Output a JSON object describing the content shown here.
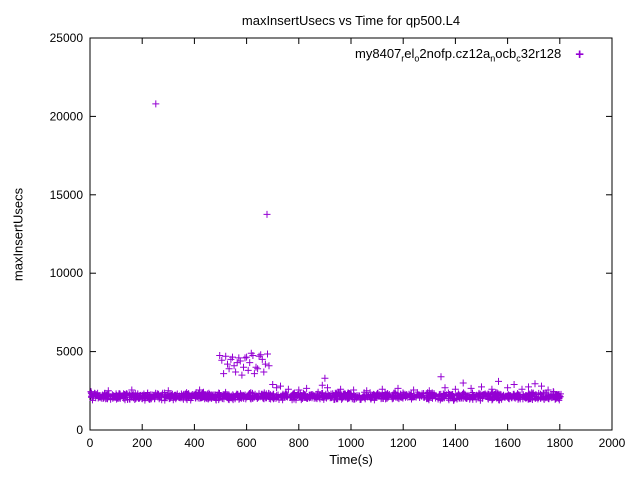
{
  "chart_data": {
    "type": "scatter",
    "title": "maxInsertUsecs vs Time for qp500.L4",
    "xlabel": "Time(s)",
    "ylabel": "maxInsertUsecs",
    "xlim": [
      0,
      2000
    ],
    "ylim": [
      0,
      25000
    ],
    "xticks": [
      0,
      200,
      400,
      600,
      800,
      1000,
      1200,
      1400,
      1600,
      1800,
      2000
    ],
    "yticks": [
      0,
      5000,
      10000,
      15000,
      20000,
      25000
    ],
    "grid": false,
    "marker": "plus",
    "marker_color": "#9400d3",
    "legend": {
      "position": "top-right",
      "plain_label": "my8407_rel_o2nofp.cz12a_nocb_c32r128",
      "label_segments": [
        {
          "t": "my8407"
        },
        {
          "t": "r",
          "sub": true
        },
        {
          "t": "el"
        },
        {
          "t": "o",
          "sub": true
        },
        {
          "t": "2nofp.cz12a"
        },
        {
          "t": "n",
          "sub": true
        },
        {
          "t": "ocb"
        },
        {
          "t": "c",
          "sub": true
        },
        {
          "t": "32r128"
        }
      ],
      "marker_glyph": "+"
    },
    "series": [
      {
        "name": "my8407_rel_o2nofp.cz12a_nocb_c32r128",
        "band": {
          "x_min": 0,
          "x_max": 1805,
          "count": 1400,
          "y_min": 1850,
          "y_max": 2450,
          "seed": 42,
          "note": "dense noisy baseline band of samples, approx 1850-2450 usecs, triangular density centered near 2150"
        },
        "outliers": [
          [
            252,
            20800
          ],
          [
            678,
            13750
          ],
          [
            497,
            4750
          ],
          [
            505,
            4450
          ],
          [
            512,
            3600
          ],
          [
            520,
            4700
          ],
          [
            527,
            4200
          ],
          [
            533,
            3900
          ],
          [
            540,
            4500
          ],
          [
            546,
            4650
          ],
          [
            552,
            4100
          ],
          [
            558,
            3700
          ],
          [
            564,
            4300
          ],
          [
            570,
            4600
          ],
          [
            576,
            4400
          ],
          [
            582,
            3500
          ],
          [
            588,
            4000
          ],
          [
            594,
            4600
          ],
          [
            600,
            4650
          ],
          [
            606,
            3800
          ],
          [
            612,
            4300
          ],
          [
            618,
            4900
          ],
          [
            624,
            4750
          ],
          [
            630,
            3600
          ],
          [
            636,
            4000
          ],
          [
            642,
            3900
          ],
          [
            648,
            4700
          ],
          [
            654,
            4800
          ],
          [
            660,
            4500
          ],
          [
            666,
            3700
          ],
          [
            672,
            4200
          ],
          [
            680,
            4850
          ],
          [
            686,
            4100
          ],
          [
            4,
            2450
          ],
          [
            70,
            2500
          ],
          [
            160,
            2550
          ],
          [
            300,
            2500
          ],
          [
            420,
            2550
          ],
          [
            700,
            2900
          ],
          [
            715,
            2700
          ],
          [
            730,
            2800
          ],
          [
            760,
            2600
          ],
          [
            800,
            2550
          ],
          [
            830,
            2650
          ],
          [
            890,
            2850
          ],
          [
            900,
            3300
          ],
          [
            910,
            2700
          ],
          [
            960,
            2600
          ],
          [
            1010,
            2550
          ],
          [
            1060,
            2500
          ],
          [
            1120,
            2600
          ],
          [
            1180,
            2650
          ],
          [
            1240,
            2550
          ],
          [
            1300,
            2500
          ],
          [
            1345,
            3400
          ],
          [
            1360,
            2700
          ],
          [
            1400,
            2600
          ],
          [
            1430,
            3000
          ],
          [
            1460,
            2650
          ],
          [
            1500,
            2750
          ],
          [
            1540,
            2600
          ],
          [
            1565,
            3100
          ],
          [
            1600,
            2700
          ],
          [
            1625,
            2900
          ],
          [
            1655,
            2600
          ],
          [
            1680,
            2750
          ],
          [
            1705,
            2950
          ],
          [
            1730,
            2800
          ],
          [
            1755,
            2550
          ],
          [
            1775,
            2450
          ]
        ]
      }
    ]
  }
}
